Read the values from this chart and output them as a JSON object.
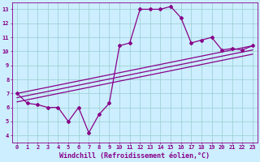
{
  "title": "",
  "xlabel": "Windchill (Refroidissement éolien,°C)",
  "ylabel": "",
  "xlim": [
    -0.5,
    23.5
  ],
  "ylim": [
    3.5,
    13.5
  ],
  "yticks": [
    4,
    5,
    6,
    7,
    8,
    9,
    10,
    11,
    12,
    13
  ],
  "xticks": [
    0,
    1,
    2,
    3,
    4,
    5,
    6,
    7,
    8,
    9,
    10,
    11,
    12,
    13,
    14,
    15,
    16,
    17,
    18,
    19,
    20,
    21,
    22,
    23
  ],
  "bg_color": "#cceeff",
  "line_color": "#880088",
  "line1_x": [
    0,
    1,
    2,
    3,
    4,
    5,
    6,
    7,
    8,
    9,
    10,
    11,
    12,
    13,
    14,
    15,
    16,
    17,
    18,
    19,
    20,
    21,
    22,
    23
  ],
  "line1_y": [
    7.0,
    6.3,
    6.2,
    6.0,
    6.0,
    5.0,
    6.0,
    4.2,
    5.5,
    6.3,
    10.4,
    10.6,
    13.0,
    13.0,
    13.0,
    13.2,
    12.4,
    10.6,
    10.8,
    11.0,
    10.1,
    10.2,
    10.1,
    10.4
  ],
  "line2_x": [
    0,
    23
  ],
  "line2_y": [
    6.7,
    10.1
  ],
  "line3_x": [
    0,
    23
  ],
  "line3_y": [
    7.0,
    10.4
  ],
  "line4_x": [
    0,
    23
  ],
  "line4_y": [
    6.4,
    9.8
  ],
  "marker": "D",
  "markersize": 2.0,
  "linewidth": 0.9,
  "font_color": "#880088",
  "tick_fontsize": 5.0,
  "xlabel_fontsize": 6.0,
  "grid_color": "#99cccc",
  "grid_linewidth": 0.5
}
